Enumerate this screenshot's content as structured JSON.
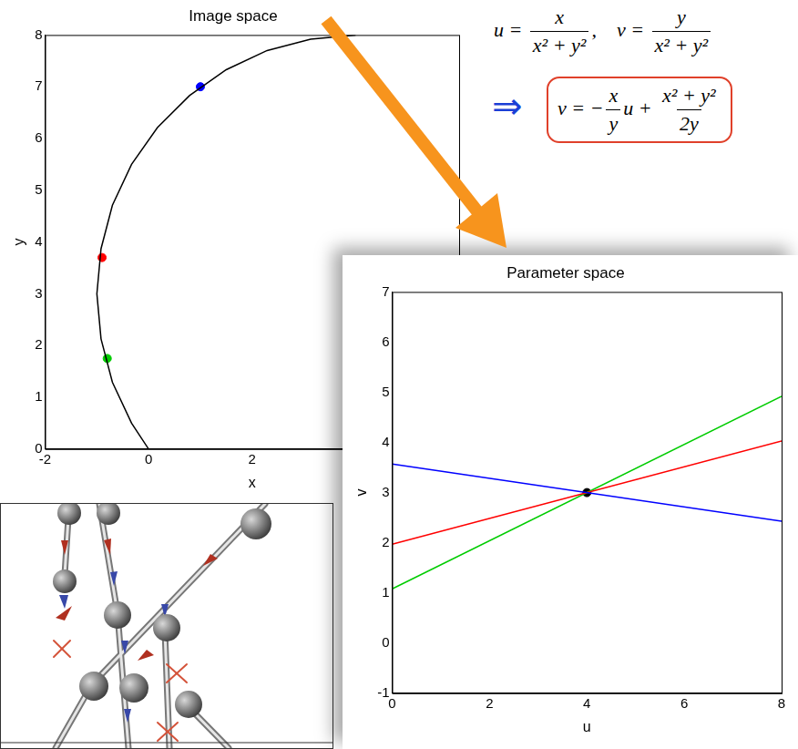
{
  "chart_data": [
    {
      "type": "line",
      "title": "Image space",
      "x_label": "x",
      "y_label": "y",
      "xlim": [
        -2,
        6
      ],
      "xticks": [
        -2,
        0,
        2
      ],
      "ylim": [
        0,
        8
      ],
      "yticks": [
        0,
        1,
        2,
        3,
        4,
        5,
        6,
        7,
        8
      ],
      "grid": false,
      "series": [
        {
          "color": "#000000",
          "marker": "none",
          "line_style": "solid",
          "x": [
            4,
            3.13,
            2.29,
            1.5,
            0.79,
            0.17,
            -0.33,
            -0.7,
            -0.92,
            -1,
            -0.92,
            -0.7,
            -0.33,
            0
          ],
          "values": [
            8,
            7.92,
            7.7,
            7.33,
            6.83,
            6.21,
            5.5,
            4.71,
            3.87,
            3,
            2.13,
            1.29,
            0.5,
            0
          ]
        },
        {
          "type": "scatter",
          "color": "#0000ff",
          "marker": "circle",
          "x": [
            1
          ],
          "values": [
            7
          ]
        },
        {
          "type": "scatter",
          "color": "#ff0000",
          "marker": "circle",
          "x": [
            -0.9
          ],
          "values": [
            3.7
          ]
        },
        {
          "type": "scatter",
          "color": "#00cc00",
          "marker": "circle",
          "x": [
            -0.8
          ],
          "values": [
            1.75
          ]
        }
      ]
    },
    {
      "type": "line",
      "title": "Parameter space",
      "x_label": "u",
      "y_label": "v",
      "xlim": [
        0,
        8
      ],
      "xticks": [
        0,
        2,
        4,
        6,
        8
      ],
      "ylim": [
        -1,
        7
      ],
      "yticks": [
        -1,
        0,
        1,
        2,
        3,
        4,
        5,
        6,
        7
      ],
      "grid": false,
      "x": [
        0,
        8
      ],
      "series": [
        {
          "color": "#0000ff",
          "marker": "none",
          "line_style": "solid",
          "values": [
            3.57,
            2.43
          ]
        },
        {
          "color": "#ff0000",
          "marker": "none",
          "line_style": "solid",
          "values": [
            1.97,
            4.03
          ]
        },
        {
          "color": "#00cc00",
          "marker": "none",
          "line_style": "solid",
          "values": [
            1.08,
            4.92
          ]
        },
        {
          "type": "scatter",
          "color": "#000000",
          "marker": "circle",
          "x": [
            4
          ],
          "values": [
            3
          ]
        }
      ]
    }
  ],
  "formulas": {
    "definitions": [
      [
        "u = ",
        {
          "num": "x",
          "den": "x² + y²"
        },
        ","
      ],
      [
        "v = ",
        {
          "num": "y",
          "den": "x² + y²"
        }
      ]
    ],
    "implies": "⇒",
    "result": [
      "v = −",
      {
        "num": "x",
        "den": "y"
      },
      "u + ",
      {
        "num": "x² + y²",
        "den": "2y"
      }
    ]
  }
}
